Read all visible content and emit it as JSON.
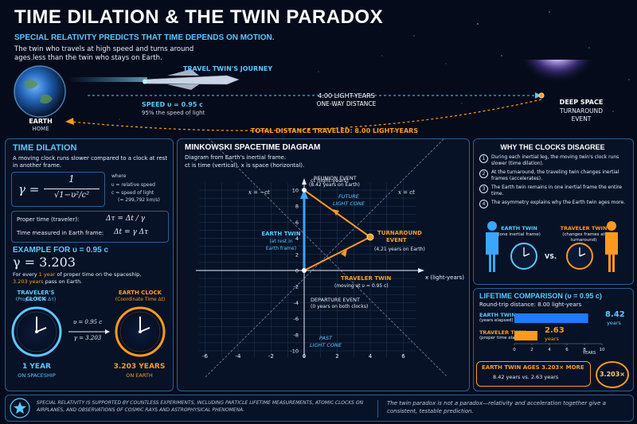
{
  "header": {
    "title": "TIME DILATION & THE TWIN PARADOX",
    "subtitle": "SPECIAL RELATIVITY PREDICTS THAT TIME DEPENDS ON MOTION.",
    "intro": "The twin who travels at high speed and turns around ages less than the twin who stays on Earth."
  },
  "journey": {
    "label": "TRAVEL TWIN'S JOURNEY",
    "speed": "SPEED υ = 0.95 c",
    "speed_note": "95% the speed of light",
    "distance": "4.00 LIGHT-YEARS",
    "distance_note": "ONE-WAY DISTANCE",
    "total": "TOTAL DISTANCE TRAVELED: 8.00 LIGHT-YEARS",
    "earth_label": "EARTH",
    "earth_sub": "HOME",
    "deep_space": "DEEP SPACE",
    "turnaround": "TURNAROUND",
    "event": "EVENT"
  },
  "time_dilation": {
    "title": "TIME DILATION",
    "desc": "A moving clock runs slower compared to a clock at rest in another frame.",
    "gamma_lhs": "γ =",
    "gamma_num": "1",
    "gamma_den": "√1−υ²/c²",
    "where": "where",
    "where_v": "υ = relative speed",
    "where_c": "c = speed of light",
    "where_c2": "(≈ 299,792 km/s)",
    "proper_label": "Proper time (traveler):",
    "proper_eq": "Δτ = Δt / γ",
    "earth_label": "Time measured in Earth frame:",
    "earth_eq": "Δt = γ Δτ"
  },
  "example": {
    "title": "EXAMPLE FOR υ = 0.95 c",
    "gamma": "γ = 3.203",
    "text_a": "For every",
    "text_b": "1 year",
    "text_c": "of proper time on the spaceship,",
    "text_d": "3.203 years",
    "text_e": "pass on Earth.",
    "trav_clock": "TRAVELER'S CLOCK",
    "trav_clock_sub": "(Proper Time Δτ)",
    "earth_clock": "EARTH CLOCK",
    "earth_clock_sub": "(Coordinate Time Δt)",
    "v_eq": "υ = 0.95 c",
    "g_eq": "γ = 3.203",
    "trav_val": "1 YEAR",
    "trav_val_sub": "ON SPACESHIP",
    "earth_val": "3.203 YEARS",
    "earth_val_sub": "ON EARTH"
  },
  "minkowski": {
    "title": "MINKOWSKI SPACETIME DIAGRAM",
    "desc1": "Diagram from Earth's inertial frame.",
    "desc2": "ct is time (vertical).  x is space (horizontal).",
    "ct_label": "ct (light-years)",
    "x_label": "x (light-years)",
    "lc_left": "x = −ct",
    "lc_right": "x = ct",
    "reunion": "REUNION EVENT",
    "reunion_sub": "(8.42 years on Earth)",
    "future": "FUTURE",
    "future2": "LIGHT CONE",
    "turn": "TURNAROUND",
    "turn2": "EVENT",
    "turn_sub": "(4.21 years on Earth)",
    "earth_twin": "EARTH TWIN",
    "earth_twin2": "(at rest in",
    "earth_twin3": "Earth frame)",
    "traveler": "TRAVELER TWIN",
    "traveler_sub": "(moving at υ = 0.95 c)",
    "departure": "DEPARTURE EVENT",
    "departure_sub": "(0 years on both clocks)",
    "past": "PAST",
    "past2": "LIGHT CONE",
    "xticks": [
      "-6",
      "-4",
      "-2",
      "0",
      "2",
      "4",
      "6"
    ],
    "yticks": [
      "10",
      "8",
      "6",
      "4",
      "2",
      "0",
      "-2",
      "-4",
      "-6",
      "-8",
      "-10"
    ]
  },
  "why": {
    "title": "WHY THE CLOCKS DISAGREE",
    "items": [
      {
        "n": "1",
        "t": "During each inertial leg, the moving twin's clock runs slower (time dilation)."
      },
      {
        "n": "2",
        "t": "At the turnaround, the traveling twin changes inertial frames (accelerates)."
      },
      {
        "n": "3",
        "t": "The Earth twin remains in one inertial frame the entire time."
      },
      {
        "n": "4",
        "t": "The asymmetry explains why the Earth twin ages more."
      }
    ],
    "earth_twin": "EARTH TWIN",
    "earth_twin_sub": "(one inertial frame)",
    "vs": "VS.",
    "trav_twin": "TRAVELER TWIN",
    "trav_twin_sub": "(changes frames at turnaround)"
  },
  "lifetime": {
    "title": "LIFETIME COMPARISON (υ = 0.95 c)",
    "subtitle": "Round-trip distance: 8.00 light-years",
    "earth_label": "EARTH TWIN",
    "earth_sub": "(years elapsed)",
    "earth_val": "8.42",
    "trav_label": "TRAVELER TWIN",
    "trav_sub": "(proper time elapsed)",
    "trav_val": "2.63",
    "unit": "years",
    "axis_title": "YEARS",
    "ticks": [
      "0",
      "2",
      "4",
      "6",
      "8",
      "10"
    ],
    "callout": "EARTH TWIN AGES 3.203× MORE",
    "callout_sub": "8.42 years vs. 2.63 years",
    "badge": "3.203×"
  },
  "footer": {
    "left": "SPECIAL RELATIVITY IS SUPPORTED BY COUNTLESS EXPERIMENTS, INCLUDING PARTICLE LIFETIME MEASUREMENTS, ATOMIC CLOCKS ON AIRPLANES, AND OBSERVATIONS OF COSMIC RAYS AND ASTROPHYSICAL PHENOMENA.",
    "right": "The twin paradox is not a paradox—relativity and acceleration together give a consistent, testable prediction."
  },
  "chart_data": {
    "type": "bar",
    "categories": [
      "EARTH TWIN",
      "TRAVELER TWIN"
    ],
    "values": [
      8.42,
      2.63
    ],
    "xlabel": "YEARS",
    "xlim": [
      0,
      10
    ],
    "colors": [
      "#1e7cff",
      "#ff9a1f"
    ]
  },
  "colors": {
    "accent": "#5cc8ff",
    "orange": "#ff9a1f",
    "blue": "#1e7cff",
    "bg": "#050b1a"
  }
}
